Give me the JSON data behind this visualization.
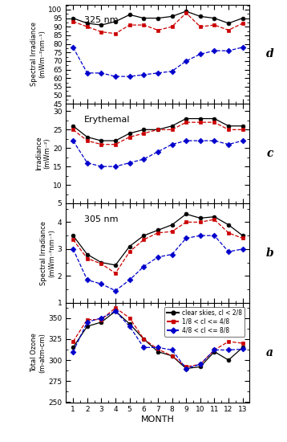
{
  "months": [
    1,
    2,
    3,
    4,
    5,
    6,
    7,
    8,
    9,
    10,
    11,
    12,
    13
  ],
  "panel_a": {
    "title": "",
    "ylabel": "Total Ozone\n(m-atm-cm)",
    "label": "a",
    "ylim": [
      250,
      368
    ],
    "yticks": [
      250,
      275,
      300,
      325,
      350
    ],
    "black": [
      315,
      340,
      345,
      358,
      343,
      325,
      310,
      305,
      290,
      292,
      310,
      300,
      315
    ],
    "red": [
      322,
      348,
      348,
      362,
      350,
      325,
      313,
      305,
      292,
      295,
      312,
      322,
      320
    ],
    "blue": [
      310,
      345,
      350,
      358,
      340,
      315,
      315,
      312,
      290,
      295,
      312,
      312,
      313
    ]
  },
  "panel_b": {
    "title": "305 nm",
    "ylabel": "Spectral Irradiance\n(mWm⁻²nm⁻¹)",
    "label": "b",
    "ylim": [
      1.0,
      4.7
    ],
    "yticks": [
      1,
      2,
      3,
      4
    ],
    "black": [
      3.5,
      2.8,
      2.5,
      2.4,
      3.1,
      3.5,
      3.7,
      3.9,
      4.3,
      4.15,
      4.2,
      3.9,
      3.5
    ],
    "red": [
      3.35,
      2.65,
      2.45,
      2.1,
      2.9,
      3.35,
      3.6,
      3.65,
      4.0,
      4.0,
      4.1,
      3.6,
      3.4
    ],
    "blue": [
      3.0,
      1.85,
      1.7,
      1.45,
      1.85,
      2.35,
      2.7,
      2.8,
      3.4,
      3.5,
      3.5,
      2.9,
      3.0
    ]
  },
  "panel_c": {
    "title": "Erythemal",
    "ylabel": "Irradiance\n(mWm⁻²)",
    "label": "c",
    "ylim": [
      5,
      32
    ],
    "yticks": [
      5,
      10,
      15,
      20,
      25,
      30
    ],
    "black": [
      26,
      23,
      22,
      22,
      24,
      25,
      25,
      26,
      28,
      28,
      28,
      26,
      26
    ],
    "red": [
      25,
      22,
      21,
      21,
      23,
      24,
      25,
      25,
      27,
      27,
      27,
      25,
      25
    ],
    "blue": [
      22,
      16,
      15,
      15,
      16,
      17,
      19,
      21,
      22,
      22,
      22,
      21,
      22
    ]
  },
  "panel_d": {
    "title": "325 nm",
    "ylabel": "Spectral Irradiance\n(mWm⁻²nm⁻¹)",
    "label": "d",
    "ylim": [
      45,
      103
    ],
    "yticks": [
      45,
      50,
      55,
      60,
      65,
      70,
      75,
      80,
      85,
      90,
      95,
      100
    ],
    "black": [
      95,
      92,
      91,
      93,
      97,
      95,
      95,
      96,
      99,
      96,
      95,
      92,
      95
    ],
    "red": [
      93,
      90,
      87,
      86,
      91,
      91,
      88,
      90,
      98,
      90,
      91,
      88,
      92
    ],
    "blue": [
      78,
      63,
      63,
      61,
      61,
      62,
      63,
      64,
      70,
      74,
      76,
      76,
      78
    ]
  },
  "legend": {
    "black_label": "clear skies, cl < 2/8",
    "red_label": "1/8 < cl <= 4/8",
    "blue_label": "4/8 < cl <= 8/8"
  },
  "black_color": "#000000",
  "red_color": "#cc0000",
  "blue_color": "#0000cc"
}
